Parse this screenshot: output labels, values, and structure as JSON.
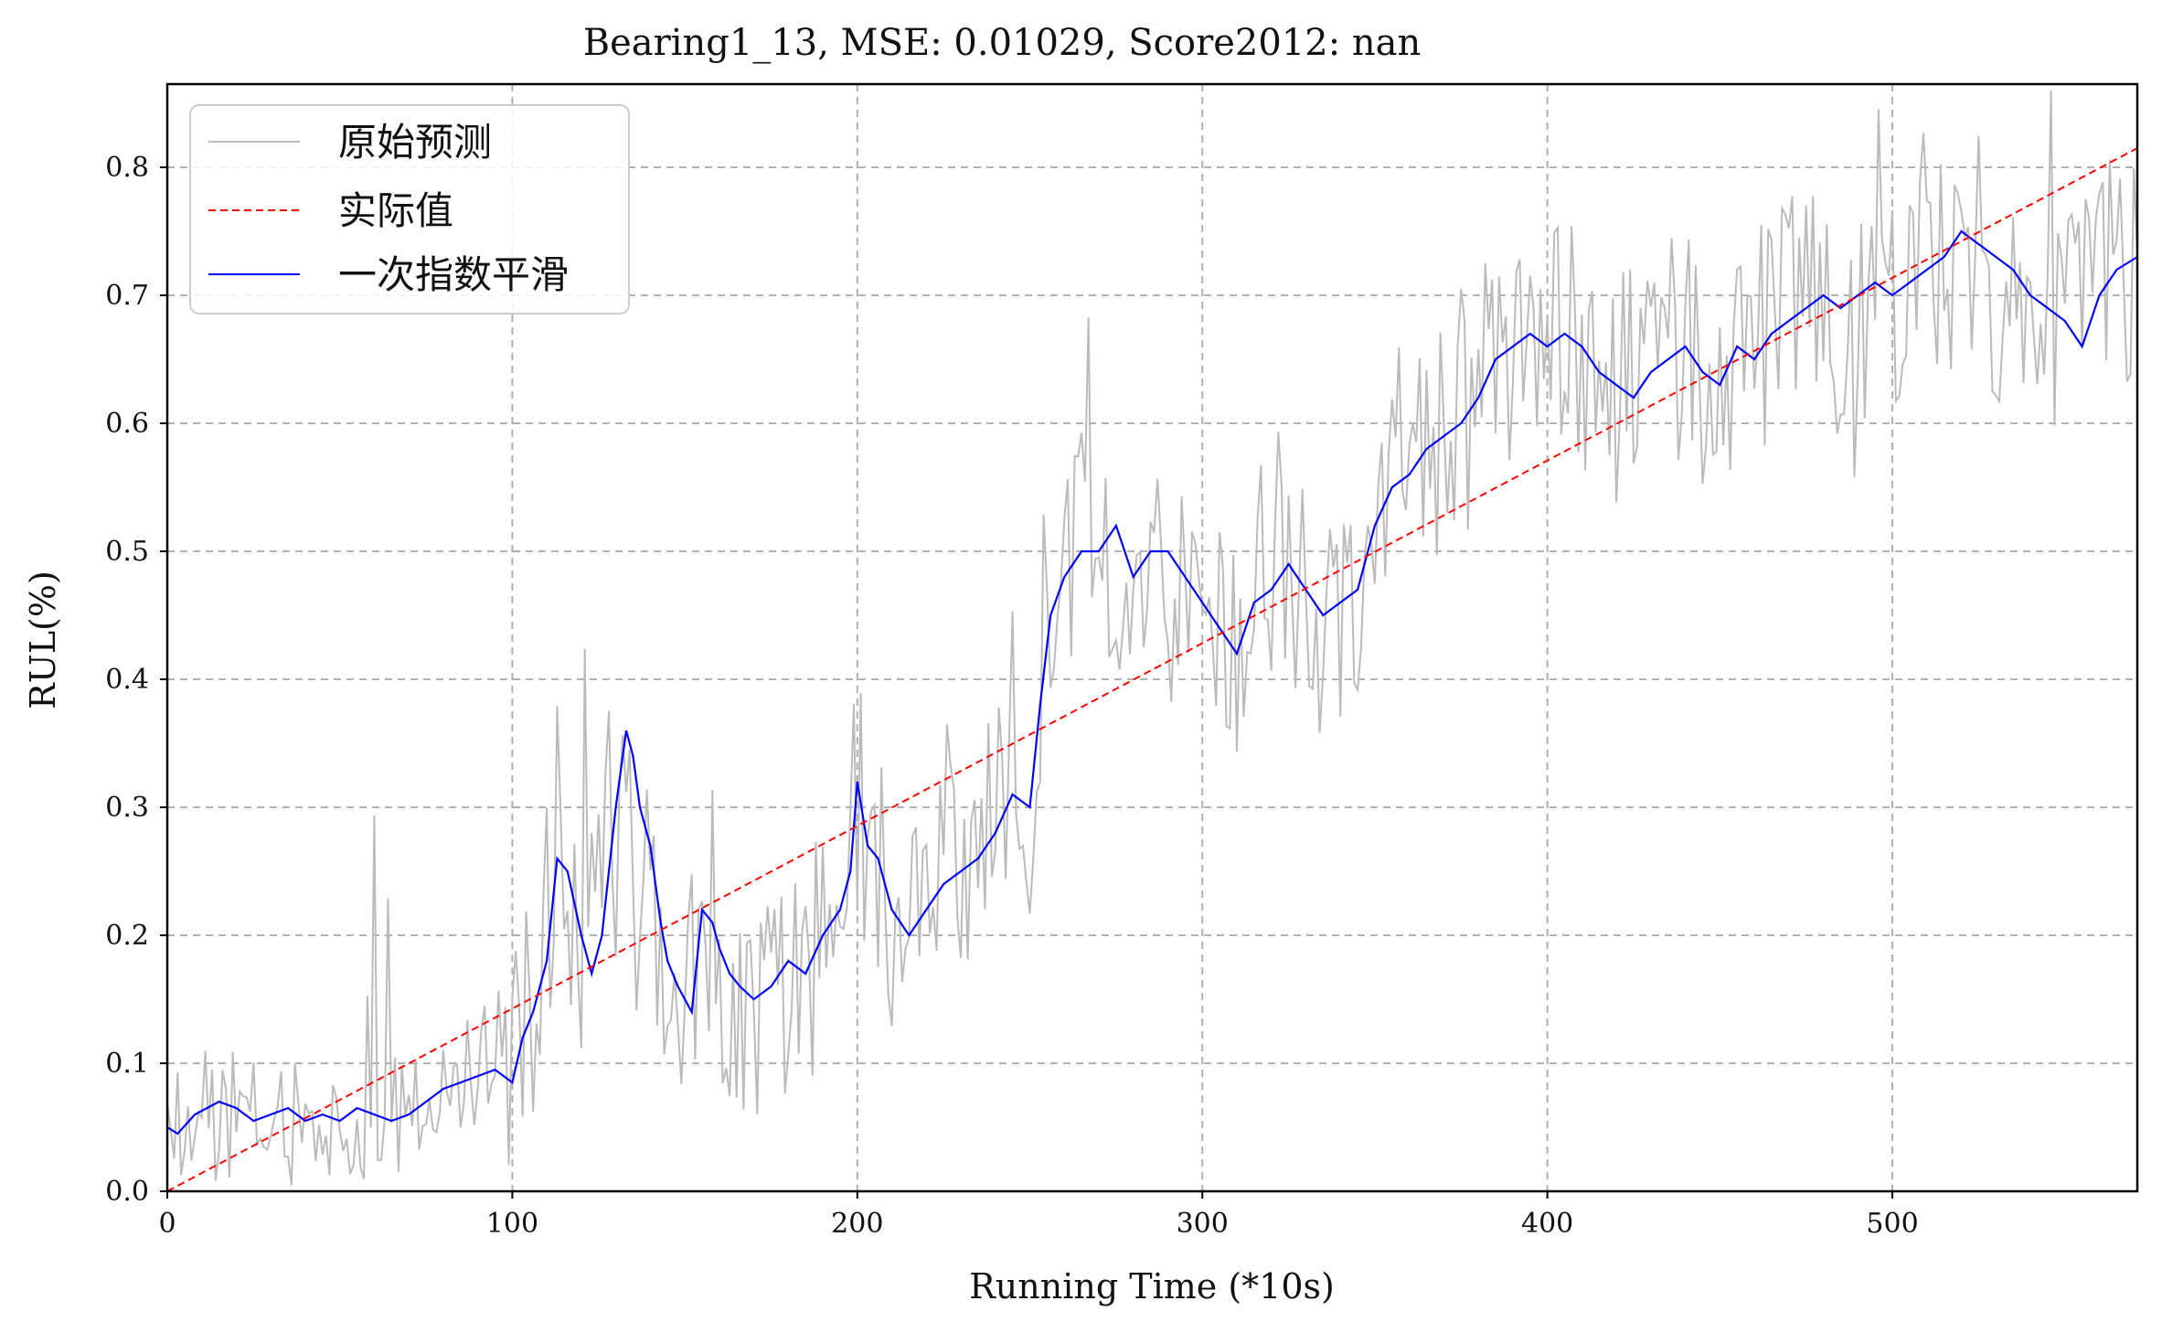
{
  "chart_data": {
    "type": "line",
    "title": "Bearing1_13, MSE: 0.01029, Score2012: nan",
    "xlabel": "Running Time (*10s)",
    "ylabel": "RUL(%)",
    "xlim": [
      0,
      571
    ],
    "ylim": [
      0,
      0.865
    ],
    "xticks": [
      0,
      100,
      200,
      300,
      400,
      500
    ],
    "xtick_labels": [
      "0",
      "100",
      "200",
      "300",
      "400",
      "500"
    ],
    "yticks": [
      0.0,
      0.1,
      0.2,
      0.3,
      0.4,
      0.5,
      0.6,
      0.7,
      0.8
    ],
    "ytick_labels": [
      "0.0",
      "0.1",
      "0.2",
      "0.3",
      "0.4",
      "0.5",
      "0.6",
      "0.7",
      "0.8"
    ],
    "grid": true,
    "legend_position": "top-left",
    "series": [
      {
        "name": "原始预测",
        "color": "#bbbbbb",
        "style": "solid",
        "note": "raw noisy predictions, one point per x from 0 to 571, approximated",
        "anchors_x": [
          0,
          20,
          40,
          60,
          80,
          95,
          100,
          105,
          110,
          113,
          116,
          120,
          125,
          130,
          133,
          136,
          140,
          145,
          150,
          155,
          160,
          170,
          180,
          190,
          200,
          205,
          210,
          220,
          230,
          240,
          250,
          255,
          260,
          270,
          280,
          290,
          300,
          310,
          320,
          330,
          340,
          350,
          360,
          370,
          380,
          390,
          400,
          410,
          420,
          430,
          440,
          450,
          460,
          470,
          480,
          490,
          500,
          510,
          520,
          530,
          540,
          550,
          560,
          571
        ],
        "anchors_y": [
          0.05,
          0.06,
          0.05,
          0.05,
          0.08,
          0.1,
          0.08,
          0.14,
          0.2,
          0.28,
          0.22,
          0.18,
          0.22,
          0.35,
          0.33,
          0.28,
          0.22,
          0.18,
          0.15,
          0.2,
          0.15,
          0.14,
          0.15,
          0.2,
          0.3,
          0.28,
          0.22,
          0.26,
          0.27,
          0.29,
          0.3,
          0.45,
          0.5,
          0.5,
          0.5,
          0.48,
          0.45,
          0.44,
          0.48,
          0.46,
          0.45,
          0.52,
          0.58,
          0.6,
          0.62,
          0.66,
          0.67,
          0.65,
          0.63,
          0.64,
          0.65,
          0.64,
          0.66,
          0.68,
          0.68,
          0.7,
          0.7,
          0.72,
          0.74,
          0.72,
          0.69,
          0.68,
          0.71,
          0.72
        ],
        "noise_amplitude": 0.1
      },
      {
        "name": "实际值",
        "color": "#ff0000",
        "style": "dashed",
        "x": [
          0,
          571
        ],
        "y": [
          0.0,
          0.815
        ]
      },
      {
        "name": "一次指数平滑",
        "color": "#0000ff",
        "style": "solid",
        "x": [
          0,
          3,
          8,
          15,
          20,
          25,
          30,
          35,
          40,
          45,
          50,
          55,
          60,
          65,
          70,
          75,
          80,
          85,
          90,
          95,
          100,
          103,
          106,
          110,
          113,
          116,
          120,
          123,
          126,
          130,
          133,
          135,
          137,
          140,
          143,
          145,
          148,
          152,
          155,
          158,
          160,
          163,
          166,
          170,
          175,
          180,
          185,
          190,
          195,
          198,
          200,
          203,
          206,
          210,
          215,
          220,
          225,
          230,
          235,
          240,
          245,
          250,
          253,
          256,
          260,
          265,
          270,
          275,
          280,
          285,
          290,
          295,
          300,
          305,
          310,
          315,
          320,
          325,
          330,
          335,
          340,
          345,
          350,
          355,
          360,
          365,
          370,
          375,
          380,
          385,
          390,
          395,
          400,
          405,
          410,
          415,
          420,
          425,
          430,
          435,
          440,
          445,
          450,
          455,
          460,
          465,
          470,
          475,
          480,
          485,
          490,
          495,
          500,
          505,
          510,
          515,
          520,
          525,
          530,
          535,
          540,
          545,
          550,
          555,
          560,
          565,
          571
        ],
        "y": [
          0.05,
          0.045,
          0.06,
          0.07,
          0.065,
          0.055,
          0.06,
          0.065,
          0.055,
          0.06,
          0.055,
          0.065,
          0.06,
          0.055,
          0.06,
          0.07,
          0.08,
          0.085,
          0.09,
          0.095,
          0.085,
          0.12,
          0.14,
          0.18,
          0.26,
          0.25,
          0.2,
          0.17,
          0.2,
          0.3,
          0.36,
          0.34,
          0.3,
          0.27,
          0.21,
          0.18,
          0.16,
          0.14,
          0.22,
          0.21,
          0.19,
          0.17,
          0.16,
          0.15,
          0.16,
          0.18,
          0.17,
          0.2,
          0.22,
          0.25,
          0.32,
          0.27,
          0.26,
          0.22,
          0.2,
          0.22,
          0.24,
          0.25,
          0.26,
          0.28,
          0.31,
          0.3,
          0.38,
          0.45,
          0.48,
          0.5,
          0.5,
          0.52,
          0.48,
          0.5,
          0.5,
          0.48,
          0.46,
          0.44,
          0.42,
          0.46,
          0.47,
          0.49,
          0.47,
          0.45,
          0.46,
          0.47,
          0.52,
          0.55,
          0.56,
          0.58,
          0.59,
          0.6,
          0.62,
          0.65,
          0.66,
          0.67,
          0.66,
          0.67,
          0.66,
          0.64,
          0.63,
          0.62,
          0.64,
          0.65,
          0.66,
          0.64,
          0.63,
          0.66,
          0.65,
          0.67,
          0.68,
          0.69,
          0.7,
          0.69,
          0.7,
          0.71,
          0.7,
          0.71,
          0.72,
          0.73,
          0.75,
          0.74,
          0.73,
          0.72,
          0.7,
          0.69,
          0.68,
          0.66,
          0.7,
          0.72,
          0.73
        ]
      }
    ]
  }
}
